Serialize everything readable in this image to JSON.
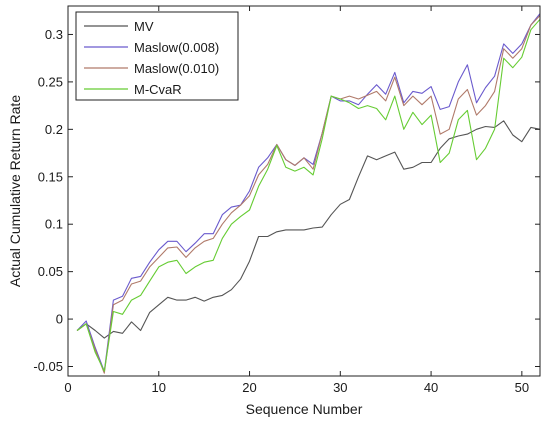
{
  "chart_data": {
    "type": "line",
    "xlabel": "Sequence Number",
    "ylabel": "Actual Cumulative Return Rate",
    "xlim": [
      0,
      52
    ],
    "ylim": [
      -0.06,
      0.33
    ],
    "xticks": [
      0,
      10,
      20,
      30,
      40,
      50
    ],
    "yticks": [
      -0.05,
      0,
      0.05,
      0.1,
      0.15,
      0.2,
      0.25,
      0.3
    ],
    "xtick_labels": [
      "0",
      "10",
      "20",
      "30",
      "40",
      "50"
    ],
    "ytick_labels": [
      "-0.05",
      "0",
      "0.05",
      "0.1",
      "0.15",
      "0.2",
      "0.25",
      "0.3"
    ],
    "grid": false,
    "legend_position": "top-left",
    "x": [
      1,
      2,
      3,
      4,
      5,
      6,
      7,
      8,
      9,
      10,
      11,
      12,
      13,
      14,
      15,
      16,
      17,
      18,
      19,
      20,
      21,
      22,
      23,
      24,
      25,
      26,
      27,
      28,
      29,
      30,
      31,
      32,
      33,
      34,
      35,
      36,
      37,
      38,
      39,
      40,
      41,
      42,
      43,
      44,
      45,
      46,
      47,
      48,
      49,
      50,
      51,
      52
    ],
    "series": [
      {
        "name": "MV",
        "color": "#555555",
        "values": [
          -0.012,
          -0.005,
          -0.012,
          -0.02,
          -0.013,
          -0.015,
          -0.003,
          -0.012,
          0.007,
          0.015,
          0.023,
          0.02,
          0.02,
          0.023,
          0.019,
          0.023,
          0.025,
          0.031,
          0.042,
          0.061,
          0.087,
          0.087,
          0.092,
          0.094,
          0.094,
          0.094,
          0.096,
          0.097,
          0.11,
          0.121,
          0.126,
          0.15,
          0.172,
          0.168,
          0.172,
          0.176,
          0.158,
          0.16,
          0.165,
          0.165,
          0.18,
          0.19,
          0.193,
          0.195,
          0.2,
          0.203,
          0.202,
          0.209,
          0.194,
          0.187,
          0.202,
          0.2
        ]
      },
      {
        "name": "Maslow(0.008)",
        "color": "#6a5acd",
        "values": [
          -0.012,
          -0.002,
          -0.03,
          -0.055,
          0.02,
          0.024,
          0.043,
          0.045,
          0.06,
          0.073,
          0.082,
          0.082,
          0.071,
          0.08,
          0.09,
          0.09,
          0.11,
          0.118,
          0.12,
          0.135,
          0.16,
          0.17,
          0.184,
          0.168,
          0.162,
          0.17,
          0.163,
          0.196,
          0.235,
          0.23,
          0.23,
          0.226,
          0.237,
          0.247,
          0.237,
          0.26,
          0.228,
          0.24,
          0.238,
          0.245,
          0.221,
          0.224,
          0.25,
          0.268,
          0.228,
          0.244,
          0.256,
          0.29,
          0.28,
          0.29,
          0.31,
          0.322
        ]
      },
      {
        "name": "Maslow(0.010)",
        "color": "#b07a6a",
        "values": [
          -0.012,
          -0.005,
          -0.032,
          -0.057,
          0.015,
          0.02,
          0.037,
          0.04,
          0.055,
          0.065,
          0.075,
          0.076,
          0.065,
          0.075,
          0.082,
          0.085,
          0.1,
          0.112,
          0.12,
          0.13,
          0.152,
          0.163,
          0.184,
          0.168,
          0.162,
          0.17,
          0.158,
          0.196,
          0.235,
          0.232,
          0.235,
          0.232,
          0.236,
          0.24,
          0.23,
          0.255,
          0.225,
          0.235,
          0.226,
          0.235,
          0.195,
          0.2,
          0.232,
          0.242,
          0.215,
          0.225,
          0.24,
          0.285,
          0.275,
          0.285,
          0.31,
          0.32
        ]
      },
      {
        "name": "M-CvaR",
        "color": "#66cc33",
        "values": [
          -0.012,
          -0.005,
          -0.035,
          -0.055,
          0.008,
          0.005,
          0.02,
          0.025,
          0.04,
          0.055,
          0.06,
          0.062,
          0.048,
          0.055,
          0.06,
          0.062,
          0.085,
          0.1,
          0.108,
          0.115,
          0.14,
          0.158,
          0.183,
          0.16,
          0.156,
          0.16,
          0.152,
          0.19,
          0.235,
          0.232,
          0.228,
          0.222,
          0.225,
          0.222,
          0.21,
          0.235,
          0.2,
          0.218,
          0.205,
          0.215,
          0.165,
          0.175,
          0.21,
          0.22,
          0.168,
          0.18,
          0.2,
          0.275,
          0.265,
          0.276,
          0.305,
          0.316
        ]
      }
    ]
  }
}
